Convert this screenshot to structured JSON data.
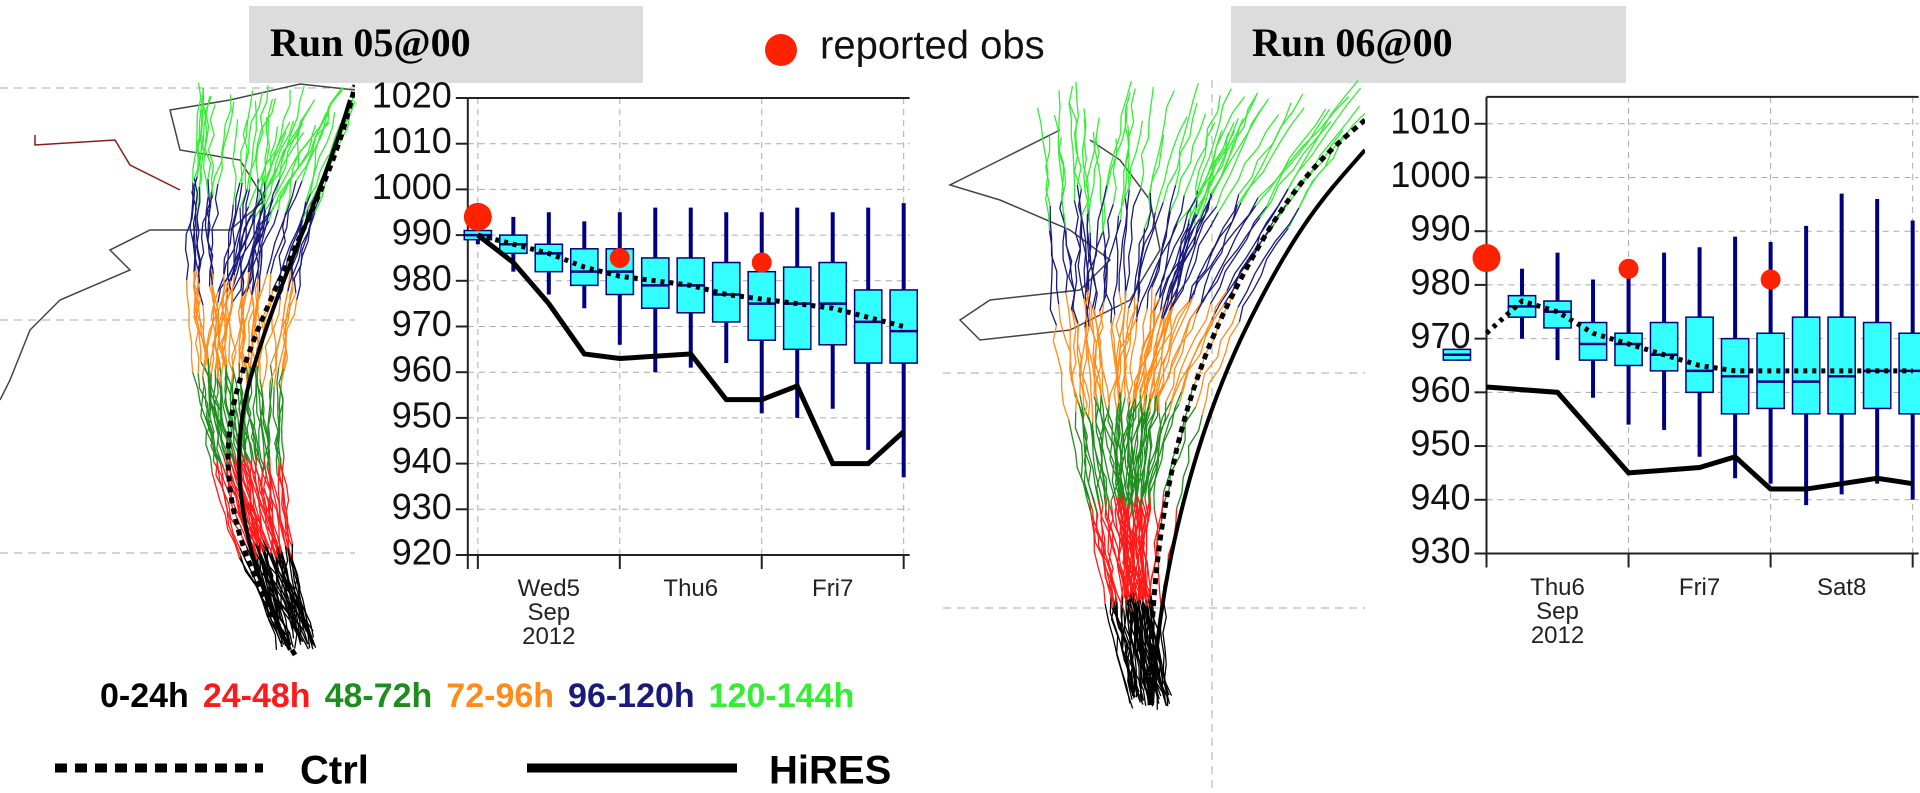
{
  "legend": {
    "obs": "reported obs",
    "lead_times": [
      {
        "label": "0-24h",
        "color": "#000000"
      },
      {
        "label": "24-48h",
        "color": "#ff1a1a"
      },
      {
        "label": "48-72h",
        "color": "#1f8c1f"
      },
      {
        "label": "72-96h",
        "color": "#ff8c1a"
      },
      {
        "label": "96-120h",
        "color": "#1a1a7a"
      },
      {
        "label": "120-144h",
        "color": "#33ee33"
      }
    ],
    "ctrl": "Ctrl",
    "hires": "HiRES"
  },
  "chart_data": [
    {
      "type": "box",
      "title": "Run 05@00",
      "xlim": [
        -1.7,
        73
      ],
      "ylim": [
        920,
        1020
      ],
      "yticks": [
        920,
        930,
        940,
        950,
        960,
        970,
        980,
        990,
        1000,
        1010,
        1020
      ],
      "xticks": [
        {
          "value": 12,
          "label": "Wed5 Sep 2012"
        },
        {
          "value": 36,
          "label": "Thu6"
        },
        {
          "value": 60,
          "label": "Fri7"
        }
      ],
      "xgrid": [
        0,
        24,
        48,
        72
      ],
      "grid": true,
      "box_color": "#33ffff",
      "whisker_color": "#000080",
      "boxes": {
        "x": [
          0,
          6,
          12,
          18,
          24,
          30,
          36,
          42,
          48,
          54,
          60,
          66,
          72
        ],
        "low": [
          988,
          982,
          977,
          974,
          966,
          960,
          961,
          962,
          951,
          950,
          952,
          943,
          937
        ],
        "q1": [
          989,
          986,
          982,
          979,
          977,
          974,
          973,
          971,
          967,
          965,
          966,
          962,
          962
        ],
        "median": [
          990,
          988,
          986,
          982,
          982,
          979,
          979,
          977,
          975,
          975,
          975,
          971,
          969
        ],
        "q3": [
          991,
          990,
          988,
          987,
          987,
          985,
          985,
          984,
          982,
          983,
          984,
          978,
          978
        ],
        "high": [
          992,
          994,
          995,
          993,
          995,
          996,
          996,
          995,
          995,
          996,
          995,
          996,
          997
        ]
      },
      "ctrl": {
        "x": [
          0,
          6,
          12,
          18,
          24,
          30,
          36,
          42,
          48,
          54,
          60,
          66,
          72
        ],
        "values": [
          990,
          988,
          986,
          983,
          981,
          980,
          979,
          977,
          976,
          975,
          974,
          972,
          970
        ]
      },
      "hires": {
        "x": [
          0,
          6,
          12,
          18,
          24,
          36,
          42,
          48,
          54,
          60,
          66,
          72
        ],
        "values": [
          990,
          984,
          975,
          964,
          963,
          964,
          954,
          954,
          957,
          940,
          940,
          947
        ]
      },
      "obs": {
        "color": "#ff2200",
        "x": [
          0,
          24,
          48
        ],
        "values": [
          994,
          985,
          984
        ]
      }
    },
    {
      "type": "box",
      "title": "Run 06@00",
      "xlim": [
        0,
        73
      ],
      "ylim": [
        930,
        1015
      ],
      "yticks": [
        930,
        940,
        950,
        960,
        970,
        980,
        990,
        1000,
        1010
      ],
      "xticks": [
        {
          "value": 12,
          "label": "Thu6 Sep 2012"
        },
        {
          "value": 36,
          "label": "Fri7"
        },
        {
          "value": 60,
          "label": "Sat8"
        }
      ],
      "xgrid": [
        0,
        24,
        48,
        72
      ],
      "grid": true,
      "box_color": "#33ffff",
      "whisker_color": "#000080",
      "boxes": {
        "x": [
          -5,
          6,
          12,
          18,
          24,
          30,
          36,
          42,
          48,
          54,
          60,
          66,
          72
        ],
        "low": [
          966,
          970,
          966,
          959,
          954,
          953,
          948,
          944,
          943,
          939,
          941,
          943,
          940
        ],
        "q1": [
          966,
          974,
          972,
          966,
          965,
          964,
          960,
          956,
          957,
          956,
          956,
          957,
          956
        ],
        "median": [
          967,
          976,
          975,
          969,
          969,
          967,
          964,
          963,
          962,
          962,
          963,
          964,
          964
        ],
        "q3": [
          968,
          978,
          977,
          973,
          971,
          973,
          974,
          970,
          971,
          974,
          974,
          973,
          971
        ],
        "high": [
          968,
          983,
          986,
          981,
          984,
          986,
          987,
          989,
          988,
          991,
          997,
          996,
          992
        ]
      },
      "ctrl": {
        "x": [
          0,
          6,
          12,
          18,
          24,
          30,
          36,
          42,
          48,
          54,
          60,
          66,
          72
        ],
        "values": [
          971,
          977,
          975,
          971,
          969,
          967,
          965,
          964,
          964,
          964,
          964,
          964,
          964
        ]
      },
      "hires": {
        "x": [
          0,
          12,
          24,
          36,
          42,
          48,
          54,
          60,
          66,
          72
        ],
        "values": [
          961,
          960,
          945,
          946,
          948,
          942,
          942,
          943,
          944,
          943
        ]
      },
      "obs": {
        "color": "#ff2200",
        "x": [
          0,
          24,
          48
        ],
        "values": [
          985,
          983,
          981
        ]
      }
    }
  ]
}
